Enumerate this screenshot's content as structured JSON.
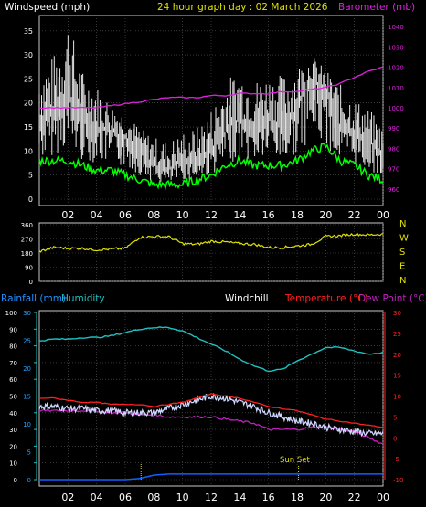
{
  "title": "24 hour graph day : 02 March 2026",
  "x_ticks": [
    "02",
    "04",
    "06",
    "08",
    "10",
    "12",
    "14",
    "16",
    "18",
    "20",
    "22",
    "00"
  ],
  "panel1": {
    "left_label": "Windspeed (mph)",
    "right_label": "Barometer (mb)",
    "left_ticks": [
      "0",
      "5",
      "10",
      "15",
      "20",
      "25",
      "30",
      "35"
    ],
    "right_ticks": [
      "960",
      "970",
      "980",
      "990",
      "1000",
      "1010",
      "1020",
      "1030",
      "1040"
    ]
  },
  "panel2": {
    "left_ticks": [
      "0",
      "90",
      "180",
      "270",
      "360"
    ],
    "compass": [
      "N",
      "W",
      "S",
      "E",
      "N"
    ]
  },
  "panel3": {
    "rainfall_label": "Rainfall (mm)",
    "humidity_label": "Humidity",
    "windchill_label": "Windchill",
    "temperature_label": "Temperature (°C)",
    "dewpoint_label": "Dew Point (°C)",
    "humidity_ticks": [
      "0",
      "10",
      "20",
      "30",
      "40",
      "50",
      "60",
      "70",
      "80",
      "90",
      "100"
    ],
    "rain_ticks": [
      "0",
      "5",
      "10",
      "15",
      "20",
      "25",
      "30"
    ],
    "temp_ticks": [
      "-10",
      "-5",
      "0",
      "5",
      "10",
      "15",
      "20",
      "25",
      "30"
    ],
    "sunset_label": "Sun Set"
  },
  "colors": {
    "wind_gust": "#e8e8e8",
    "wind_avg": "#00ff00",
    "barometer": "#e020e0",
    "direction": "#e0e000",
    "humidity": "#20c0c0",
    "temperature": "#ff2020",
    "windchill": "#d0d8ff",
    "dewpoint": "#c020c0",
    "rainfall": "#1060ff",
    "title": "#e0e000",
    "grid": "#585858",
    "compass": "#e0e000"
  },
  "chart_data": [
    {
      "type": "line",
      "panel": "wind-barometer",
      "x_hours": [
        0,
        1,
        2,
        3,
        4,
        5,
        6,
        7,
        8,
        9,
        10,
        11,
        12,
        13,
        14,
        15,
        16,
        17,
        18,
        19,
        20,
        21,
        22,
        23,
        24
      ],
      "series": [
        {
          "name": "Windspeed (mph)",
          "axis": "left",
          "values": [
            16,
            18,
            22,
            16,
            15,
            14,
            13,
            10,
            7,
            6,
            8,
            8,
            10,
            14,
            17,
            15,
            17,
            15,
            19,
            25,
            22,
            15,
            14,
            12,
            9
          ]
        },
        {
          "name": "Gust",
          "axis": "left",
          "values": [
            28,
            30,
            38,
            27,
            24,
            20,
            18,
            15,
            13,
            12,
            14,
            15,
            19,
            25,
            27,
            25,
            26,
            26,
            28,
            30,
            27,
            24,
            21,
            19,
            15
          ]
        },
        {
          "name": "Average",
          "axis": "left",
          "values": [
            8,
            8,
            8,
            7,
            6,
            6,
            5,
            4,
            3,
            3,
            3,
            4,
            5,
            7,
            8,
            7,
            7,
            7,
            8,
            10,
            11,
            8,
            7,
            5,
            4
          ]
        },
        {
          "name": "Barometer (mb)",
          "axis": "right",
          "values": [
            1000,
            1000,
            1000,
            1000,
            1000,
            1001,
            1002,
            1003,
            1004,
            1005,
            1005,
            1005,
            1006,
            1006,
            1007,
            1007,
            1007,
            1008,
            1008,
            1009,
            1010,
            1012,
            1015,
            1018,
            1020
          ]
        }
      ],
      "left_ylim": [
        0,
        38
      ],
      "right_ylim": [
        955,
        1045
      ]
    },
    {
      "type": "line",
      "panel": "wind-direction",
      "x_hours": [
        0,
        1,
        2,
        3,
        4,
        5,
        6,
        7,
        8,
        9,
        10,
        11,
        12,
        13,
        14,
        15,
        16,
        17,
        18,
        19,
        20,
        21,
        22,
        23,
        24
      ],
      "series": [
        {
          "name": "Wind direction",
          "values": [
            190,
            215,
            210,
            210,
            200,
            205,
            210,
            280,
            285,
            285,
            240,
            235,
            255,
            250,
            240,
            235,
            215,
            215,
            225,
            235,
            285,
            290,
            300,
            295,
            300
          ]
        }
      ],
      "ylim": [
        0,
        360
      ]
    },
    {
      "type": "line",
      "panel": "temperature-humidity",
      "x_hours": [
        0,
        1,
        2,
        3,
        4,
        5,
        6,
        7,
        8,
        9,
        10,
        11,
        12,
        13,
        14,
        15,
        16,
        17,
        18,
        19,
        20,
        21,
        22,
        23,
        24
      ],
      "series": [
        {
          "name": "Humidity",
          "axis": "humidity",
          "values": [
            83,
            84,
            84,
            85,
            85,
            86,
            88,
            90,
            91,
            91,
            89,
            85,
            81,
            77,
            72,
            68,
            65,
            66,
            71,
            75,
            79,
            79,
            77,
            75,
            76
          ]
        },
        {
          "name": "Temperature (°C)",
          "axis": "temp",
          "values": [
            9.5,
            9.5,
            9,
            8.5,
            8.5,
            8,
            8,
            8,
            7.5,
            8,
            8.5,
            9.5,
            10.5,
            10,
            9.5,
            8.5,
            7.5,
            7,
            6.5,
            5.5,
            4.5,
            4,
            3.5,
            3,
            2.5
          ]
        },
        {
          "name": "Windchill",
          "axis": "temp",
          "values": [
            7.5,
            7.5,
            7,
            7,
            6.5,
            6.5,
            6,
            6,
            6,
            7,
            8,
            9,
            10,
            9.5,
            8.5,
            7.5,
            6,
            5,
            4,
            3.5,
            2.5,
            2,
            1.5,
            1,
            1
          ]
        },
        {
          "name": "Dew Point (°C)",
          "axis": "temp",
          "values": [
            6.5,
            6.5,
            6.5,
            6.5,
            6.5,
            6,
            6,
            5.5,
            5.5,
            5,
            5,
            5,
            5,
            4.5,
            4,
            3.5,
            2,
            2,
            2,
            2.5,
            2.5,
            2,
            1.5,
            0,
            -1.5
          ]
        },
        {
          "name": "Rainfall (mm)",
          "axis": "rain",
          "values": [
            0,
            0,
            0,
            0,
            0,
            0,
            0,
            0.2,
            0.8,
            1,
            1,
            1,
            1,
            1,
            1,
            1,
            1,
            1,
            1,
            1,
            1,
            1,
            1,
            1,
            1
          ]
        }
      ],
      "humidity_ylim": [
        0,
        100
      ],
      "temp_ylim": [
        -10,
        30
      ],
      "rain_ylim": [
        0,
        30
      ],
      "sunset_hour": 18.1,
      "rain_event_hour": 7.1
    }
  ]
}
